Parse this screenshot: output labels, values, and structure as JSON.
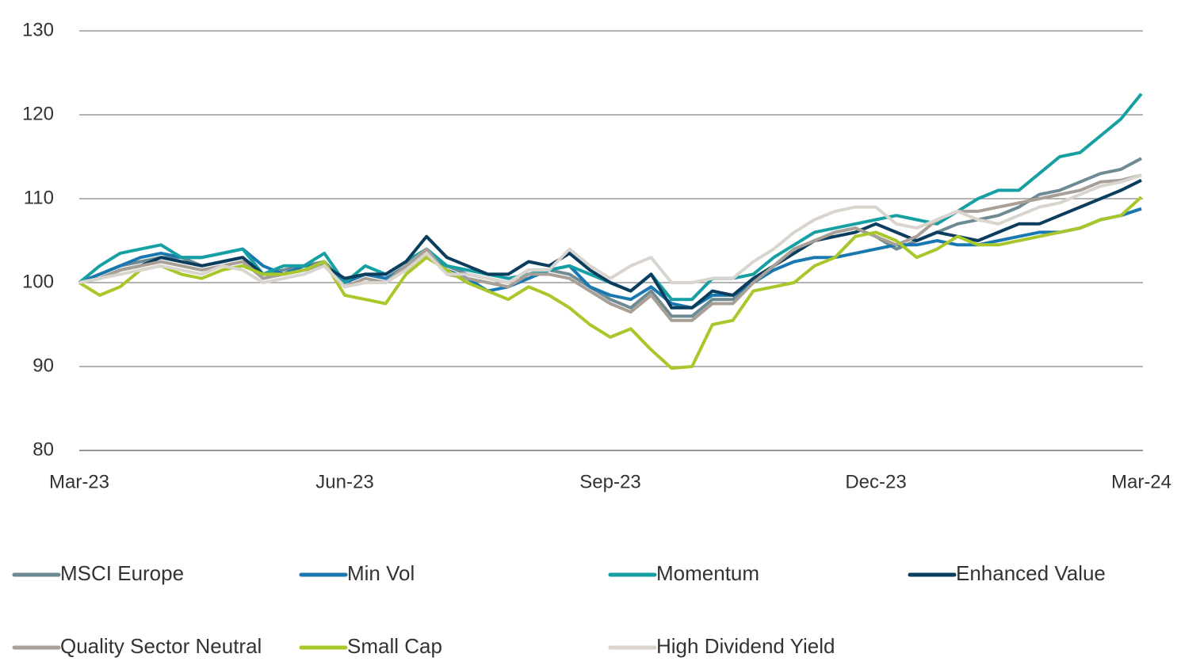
{
  "chart_data": {
    "type": "line",
    "categories": [
      "Mar-23",
      null,
      null,
      null,
      null,
      null,
      null,
      null,
      null,
      null,
      null,
      null,
      null,
      "Jun-23",
      null,
      null,
      null,
      null,
      null,
      null,
      null,
      null,
      null,
      null,
      null,
      null,
      "Sep-23",
      null,
      null,
      null,
      null,
      null,
      null,
      null,
      null,
      null,
      null,
      null,
      null,
      "Dec-23",
      null,
      null,
      null,
      null,
      null,
      null,
      null,
      null,
      null,
      null,
      null,
      null,
      "Mar-24"
    ],
    "ylim": [
      80,
      130
    ],
    "yticks": [
      80,
      90,
      100,
      110,
      120,
      130
    ],
    "grid": true,
    "series": [
      {
        "name": "MSCI Europe",
        "color": "#6e8a93",
        "values": [
          100,
          101,
          102,
          102.5,
          103,
          103,
          102,
          102.5,
          103,
          101,
          101.5,
          102,
          102.5,
          100,
          101,
          100.5,
          102,
          104,
          102,
          101,
          100.5,
          100,
          101.5,
          101.5,
          101,
          99.5,
          98,
          97,
          99,
          96,
          96,
          98,
          98,
          100,
          102,
          104,
          105,
          106,
          106.5,
          105.5,
          104,
          105,
          106,
          107,
          107.5,
          108,
          109,
          110.5,
          111,
          112,
          113,
          113.5,
          114.8
        ]
      },
      {
        "name": "Min Vol",
        "color": "#1a78b0",
        "values": [
          100,
          101,
          102,
          103,
          103.5,
          103,
          103,
          103.5,
          104,
          102,
          101,
          102,
          102,
          100,
          101,
          100.5,
          101.5,
          103.5,
          101.5,
          100.5,
          99,
          99.5,
          100.5,
          101.5,
          102,
          99.5,
          98.5,
          98,
          99.5,
          97.5,
          97,
          98.5,
          98.5,
          100,
          101.5,
          102.5,
          103,
          103,
          103.5,
          104,
          104.5,
          104.5,
          105,
          104.5,
          104.5,
          105,
          105.5,
          106,
          106,
          106.5,
          107.5,
          108,
          108.8
        ]
      },
      {
        "name": "Momentum",
        "color": "#17a0a3",
        "values": [
          100,
          102,
          103.5,
          104,
          104.5,
          103,
          103,
          103.5,
          104,
          101,
          102,
          102,
          103.5,
          100,
          102,
          101,
          102.5,
          104,
          102,
          101.5,
          101,
          100.5,
          101,
          101.5,
          102,
          101,
          100,
          99,
          101,
          98,
          98,
          100.5,
          100.5,
          101,
          103,
          104.5,
          106,
          106.5,
          107,
          107.5,
          108,
          107.5,
          107,
          108.5,
          110,
          111,
          111,
          113,
          115,
          115.5,
          117.5,
          119.5,
          122.5
        ]
      },
      {
        "name": "Enhanced Value",
        "color": "#0b3d5e",
        "values": [
          100,
          100.5,
          101.5,
          102,
          103,
          102.5,
          102,
          102.5,
          103,
          101,
          101,
          101.5,
          102,
          100.5,
          101,
          101,
          102.5,
          105.5,
          103,
          102,
          101,
          101,
          102.5,
          102,
          103.5,
          101.5,
          100,
          99,
          101,
          97,
          97,
          99,
          98.5,
          100.5,
          102,
          103.5,
          105,
          105.5,
          106,
          107,
          106,
          105,
          106,
          105.5,
          105,
          106,
          107,
          107,
          108,
          109,
          110,
          111,
          112.2
        ]
      },
      {
        "name": "Quality Sector Neutral",
        "color": "#a89f97",
        "values": [
          100,
          100.5,
          101.5,
          102,
          102.5,
          102,
          101.5,
          102,
          102.5,
          100.5,
          101,
          101.5,
          102,
          99.5,
          100.5,
          100,
          102,
          104,
          101,
          100.5,
          100,
          99.5,
          101,
          101,
          100.5,
          99,
          97.5,
          96.5,
          98.5,
          95.5,
          95.5,
          97.5,
          97.5,
          100,
          102,
          104,
          105,
          106,
          106.5,
          105.5,
          104.5,
          105.5,
          107.5,
          108.5,
          108.5,
          109,
          109.5,
          110,
          110.5,
          111,
          112,
          112.2,
          112.8
        ]
      },
      {
        "name": "Small Cap",
        "color": "#a8c72a",
        "values": [
          100,
          98.5,
          99.5,
          101.5,
          102,
          101,
          100.5,
          101.5,
          102,
          101,
          101,
          101.5,
          102.5,
          98.5,
          98,
          97.5,
          101,
          103,
          101.5,
          100,
          99,
          98,
          99.5,
          98.5,
          97,
          95,
          93.5,
          94.5,
          92,
          89.8,
          90,
          95,
          95.5,
          99,
          99.5,
          100,
          102,
          103,
          105.5,
          106,
          105,
          103,
          104,
          105.5,
          104.5,
          104.5,
          105,
          105.5,
          106,
          106.5,
          107.5,
          108,
          110.2
        ]
      },
      {
        "name": "High Dividend Yield",
        "color": "#d9d4ce",
        "values": [
          100,
          100.5,
          101,
          101.5,
          102,
          101.5,
          101,
          102,
          101.5,
          100,
          100.5,
          101,
          102,
          99.5,
          100,
          100,
          101.5,
          103.5,
          101,
          101,
          100.5,
          100,
          101.5,
          101.5,
          104,
          102,
          100.5,
          102,
          103,
          100,
          100,
          100.5,
          100.5,
          102.5,
          104,
          106,
          107.5,
          108.5,
          109,
          109,
          107,
          106.5,
          107.5,
          108.5,
          107.5,
          107,
          108,
          109,
          109.5,
          110.5,
          111.5,
          112,
          112.8
        ]
      }
    ]
  }
}
